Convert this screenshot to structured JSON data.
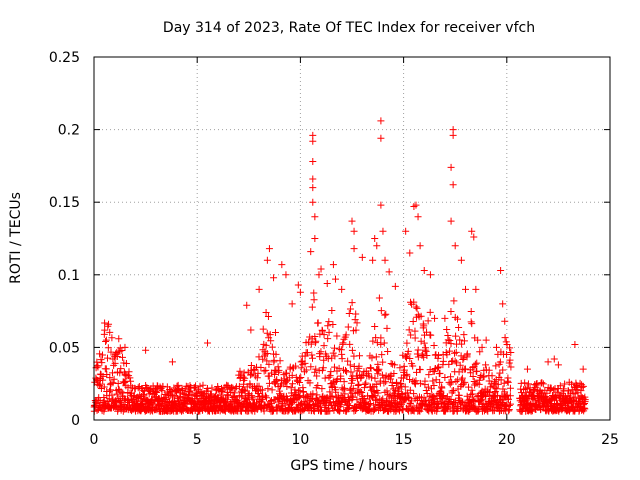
{
  "chart_data": {
    "type": "scatter",
    "title": "Day 314 of 2023, Rate Of TEC Index for receiver vfch",
    "xlabel": "GPS time / hours",
    "ylabel": "ROTI / TECUs",
    "xlim": [
      0,
      24
    ],
    "ylim": [
      0,
      0.25
    ],
    "xticks": [
      0,
      5,
      10,
      15,
      20,
      25
    ],
    "xtick_labels": [
      "0",
      "5",
      "10",
      "15",
      "20",
      "25"
    ],
    "yticks": [
      0,
      0.05,
      0.1,
      0.15,
      0.2,
      0.25
    ],
    "ytick_labels": [
      "0",
      "0.05",
      "0.1",
      "0.15",
      "0.2",
      "0.25"
    ],
    "grid": true,
    "marker": "+",
    "color": "#ff0000",
    "gap_hours": [
      20.2,
      20.6
    ],
    "series": [
      {
        "name": "ROTI",
        "points": [
          [
            0.5,
            0.059
          ],
          [
            0.6,
            0.055
          ],
          [
            1.2,
            0.056
          ],
          [
            1.5,
            0.05
          ],
          [
            2.5,
            0.048
          ],
          [
            3.8,
            0.04
          ],
          [
            5.5,
            0.053
          ],
          [
            7.4,
            0.079
          ],
          [
            7.6,
            0.062
          ],
          [
            8.0,
            0.09
          ],
          [
            8.4,
            0.11
          ],
          [
            8.5,
            0.118
          ],
          [
            8.7,
            0.098
          ],
          [
            9.1,
            0.107
          ],
          [
            9.3,
            0.1
          ],
          [
            9.6,
            0.08
          ],
          [
            9.9,
            0.093
          ],
          [
            10.0,
            0.088
          ],
          [
            10.5,
            0.116
          ],
          [
            10.6,
            0.196
          ],
          [
            10.6,
            0.192
          ],
          [
            10.6,
            0.178
          ],
          [
            10.6,
            0.166
          ],
          [
            10.6,
            0.16
          ],
          [
            10.6,
            0.15
          ],
          [
            10.7,
            0.14
          ],
          [
            10.7,
            0.125
          ],
          [
            10.9,
            0.1
          ],
          [
            11.0,
            0.104
          ],
          [
            11.3,
            0.094
          ],
          [
            11.6,
            0.107
          ],
          [
            11.7,
            0.097
          ],
          [
            12.0,
            0.09
          ],
          [
            12.5,
            0.137
          ],
          [
            12.6,
            0.13
          ],
          [
            12.6,
            0.118
          ],
          [
            13.0,
            0.112
          ],
          [
            13.5,
            0.11
          ],
          [
            13.6,
            0.125
          ],
          [
            13.7,
            0.12
          ],
          [
            13.9,
            0.206
          ],
          [
            13.9,
            0.194
          ],
          [
            13.9,
            0.148
          ],
          [
            14.0,
            0.13
          ],
          [
            14.1,
            0.11
          ],
          [
            14.3,
            0.102
          ],
          [
            14.6,
            0.092
          ],
          [
            15.1,
            0.13
          ],
          [
            15.3,
            0.115
          ],
          [
            15.5,
            0.147
          ],
          [
            15.6,
            0.148
          ],
          [
            15.7,
            0.14
          ],
          [
            15.8,
            0.12
          ],
          [
            16.0,
            0.103
          ],
          [
            16.3,
            0.1
          ],
          [
            16.5,
            0.07
          ],
          [
            17.0,
            0.07
          ],
          [
            17.3,
            0.137
          ],
          [
            17.3,
            0.174
          ],
          [
            17.4,
            0.2
          ],
          [
            17.4,
            0.196
          ],
          [
            17.4,
            0.162
          ],
          [
            17.5,
            0.12
          ],
          [
            17.8,
            0.11
          ],
          [
            18.0,
            0.09
          ],
          [
            18.3,
            0.13
          ],
          [
            18.4,
            0.126
          ],
          [
            18.5,
            0.09
          ],
          [
            18.8,
            0.05
          ],
          [
            19.0,
            0.055
          ],
          [
            19.5,
            0.05
          ],
          [
            19.7,
            0.103
          ],
          [
            19.8,
            0.08
          ],
          [
            19.9,
            0.068
          ],
          [
            21.0,
            0.035
          ],
          [
            22.0,
            0.04
          ],
          [
            22.3,
            0.042
          ],
          [
            22.5,
            0.038
          ],
          [
            23.3,
            0.052
          ],
          [
            23.7,
            0.035
          ]
        ]
      }
    ]
  }
}
